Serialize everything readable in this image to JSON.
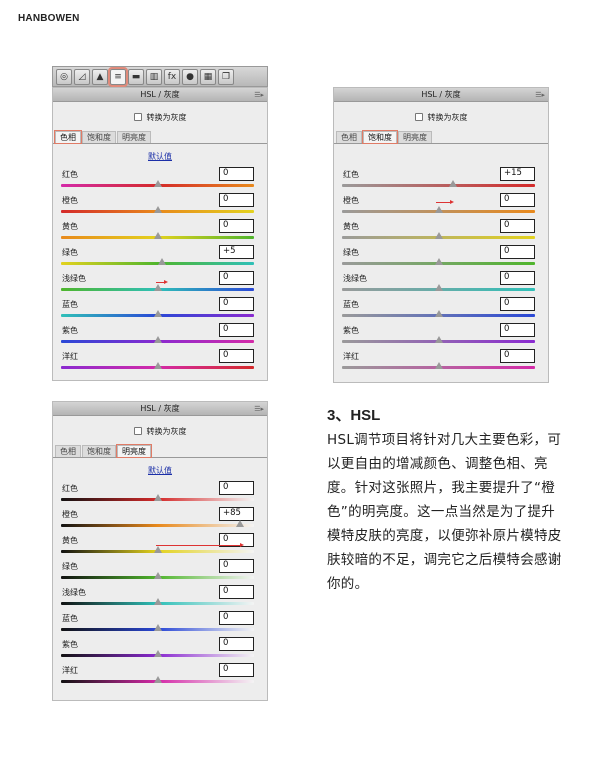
{
  "brand": "HANBOWEN",
  "toolbar": {
    "icons": [
      "aperture-icon",
      "tone-curve-icon",
      "detail-icon",
      "hsl-icon",
      "split-toning-icon",
      "lens-icon",
      "fx-icon",
      "camera-calibration-icon",
      "presets-icon",
      "snapshots-icon"
    ],
    "active": "hsl-icon"
  },
  "panels": [
    {
      "title": "HSL / 灰度",
      "grayscale_label": "转换为灰度",
      "tabs": [
        "色相",
        "饱和度",
        "明亮度"
      ],
      "active_tab": 0,
      "defaults_label": "默认值",
      "mode": "hue",
      "rows": [
        {
          "label": "红色",
          "value": "0"
        },
        {
          "label": "橙色",
          "value": "0"
        },
        {
          "label": "黄色",
          "value": "0"
        },
        {
          "label": "绿色",
          "value": "+5"
        },
        {
          "label": "浅绿色",
          "value": "0"
        },
        {
          "label": "蓝色",
          "value": "0"
        },
        {
          "label": "紫色",
          "value": "0"
        },
        {
          "label": "洋红",
          "value": "0"
        }
      ]
    },
    {
      "title": "HSL / 灰度",
      "grayscale_label": "转换为灰度",
      "tabs": [
        "色相",
        "饱和度",
        "明亮度"
      ],
      "active_tab": 1,
      "defaults_label": "",
      "mode": "sat",
      "rows": [
        {
          "label": "红色",
          "value": "+15"
        },
        {
          "label": "橙色",
          "value": "0"
        },
        {
          "label": "黄色",
          "value": "0"
        },
        {
          "label": "绿色",
          "value": "0"
        },
        {
          "label": "浅绿色",
          "value": "0"
        },
        {
          "label": "蓝色",
          "value": "0"
        },
        {
          "label": "紫色",
          "value": "0"
        },
        {
          "label": "洋红",
          "value": "0"
        }
      ]
    },
    {
      "title": "HSL / 灰度",
      "grayscale_label": "转换为灰度",
      "tabs": [
        "色相",
        "饱和度",
        "明亮度"
      ],
      "active_tab": 2,
      "defaults_label": "默认值",
      "mode": "lum",
      "rows": [
        {
          "label": "红色",
          "value": "0"
        },
        {
          "label": "橙色",
          "value": "+85"
        },
        {
          "label": "黄色",
          "value": "0"
        },
        {
          "label": "绿色",
          "value": "0"
        },
        {
          "label": "浅绿色",
          "value": "0"
        },
        {
          "label": "蓝色",
          "value": "0"
        },
        {
          "label": "紫色",
          "value": "0"
        },
        {
          "label": "洋红",
          "value": "0"
        }
      ]
    }
  ],
  "colors": {
    "red": "#d42a2a",
    "orange": "#e8891c",
    "yellow": "#e3d21e",
    "green": "#4fb52c",
    "aqua": "#2fc0b8",
    "blue": "#2a48d6",
    "purple": "#8a2ad0",
    "magenta": "#d42aa8",
    "accent": "#e07b66",
    "arrow": "#d33333"
  },
  "article": {
    "heading": "3、HSL",
    "body": "HSL调节项目将针对几大主要色彩，可以更自由的增减颜色、调整色相、亮度。针对这张照片，我主要提升了“橙色”的明亮度。这一点当然是为了提升模特皮肤的亮度，以便弥补原片模特皮肤较暗的不足，调完它之后模特会感谢你的。"
  }
}
